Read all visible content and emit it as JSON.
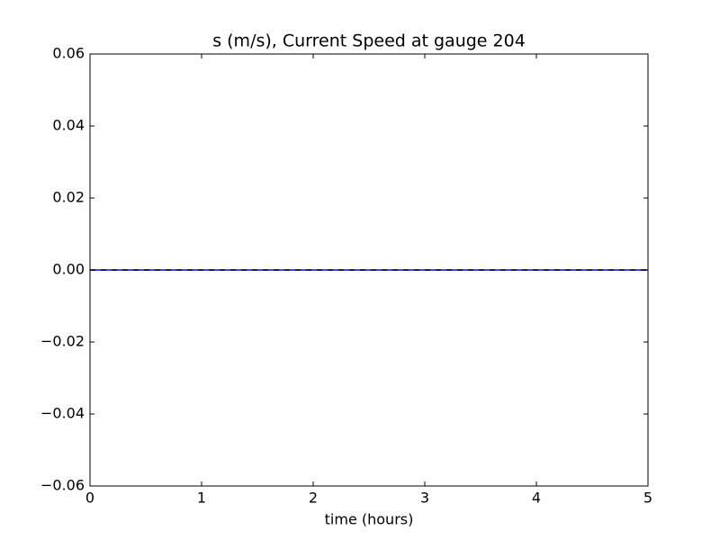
{
  "chart_data": {
    "type": "line",
    "title": "s (m/s), Current Speed at gauge 204",
    "x_label": "time (hours)",
    "x": [
      0,
      5
    ],
    "series": [
      {
        "color": "#0000ff",
        "dash": false,
        "values": [
          0,
          0
        ]
      },
      {
        "color": "#000000",
        "dash": true,
        "values": [
          0,
          0
        ]
      }
    ],
    "xlim": [
      0,
      5
    ],
    "xticks": [
      0,
      1,
      2,
      3,
      4,
      5
    ],
    "ylim": [
      -0.06,
      0.06
    ],
    "yticks": [
      {
        "value": -0.06,
        "label": "−0.06"
      },
      {
        "value": -0.04,
        "label": "−0.04"
      },
      {
        "value": -0.02,
        "label": "−0.02"
      },
      {
        "value": 0,
        "label": "0.00"
      },
      0.02,
      0.04,
      0.06
    ],
    "grid": false
  }
}
